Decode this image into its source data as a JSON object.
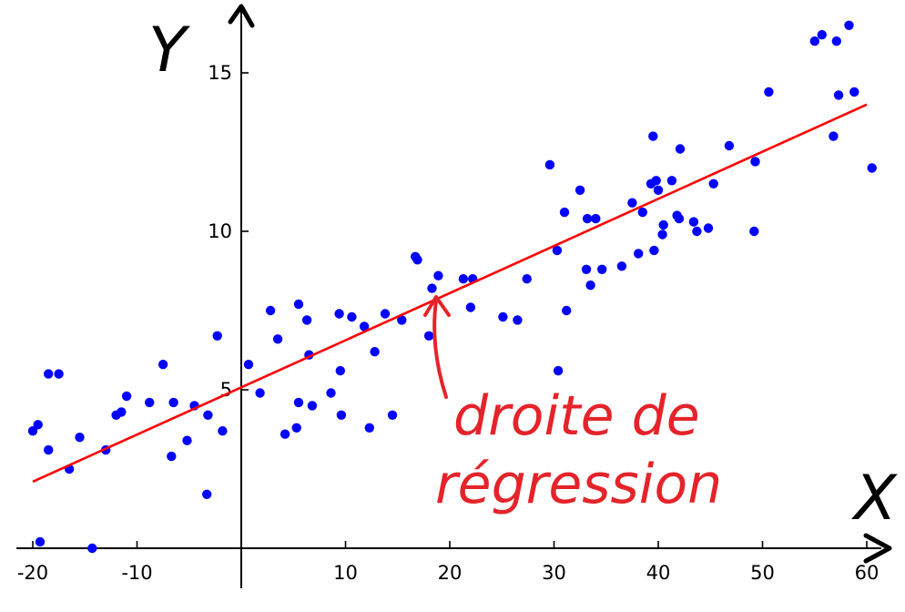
{
  "chart_data": {
    "type": "scatter",
    "title": "",
    "xlabel": "X",
    "ylabel": "Y",
    "xlim": [
      -20,
      60
    ],
    "ylim": [
      0,
      16
    ],
    "x_ticks": [
      -20,
      -10,
      10,
      20,
      30,
      40,
      50,
      60
    ],
    "x_tick_labels": [
      "-20",
      "-10",
      "10",
      "20",
      "30",
      "40",
      "50",
      "60"
    ],
    "y_ticks": [
      5,
      10,
      15
    ],
    "y_tick_labels": [
      "5",
      "10",
      "15"
    ],
    "grid": false,
    "legend": "none",
    "colors": {
      "points": "#0000ff",
      "regression_line": "#ff0000",
      "annotation": "#e4242a",
      "axes": "#000000"
    },
    "series": [
      {
        "kind": "scatter",
        "points": [
          [
            -20,
            3.7
          ],
          [
            -19.5,
            3.9
          ],
          [
            -18.5,
            5.5
          ],
          [
            -17.5,
            5.5
          ],
          [
            -16.5,
            2.5
          ],
          [
            -15.5,
            3.5
          ],
          [
            -18.5,
            3.1
          ],
          [
            -19.3,
            0.2
          ],
          [
            -14.3,
            0.0
          ],
          [
            -13,
            3.1
          ],
          [
            -12,
            4.2
          ],
          [
            -11.5,
            4.3
          ],
          [
            -11,
            4.8
          ],
          [
            -8.8,
            4.6
          ],
          [
            -7.5,
            5.8
          ],
          [
            -6.7,
            2.9
          ],
          [
            -6.5,
            4.6
          ],
          [
            -5.2,
            3.4
          ],
          [
            -4.5,
            4.5
          ],
          [
            -3.3,
            1.7
          ],
          [
            -3.2,
            4.2
          ],
          [
            -2.3,
            6.7
          ],
          [
            -1.8,
            3.7
          ],
          [
            0.7,
            5.8
          ],
          [
            1.8,
            4.9
          ],
          [
            2.8,
            7.5
          ],
          [
            3.5,
            6.6
          ],
          [
            4.2,
            3.6
          ],
          [
            5.3,
            3.8
          ],
          [
            5.5,
            7.7
          ],
          [
            5.5,
            4.6
          ],
          [
            6.3,
            7.2
          ],
          [
            6.5,
            6.1
          ],
          [
            6.8,
            4.5
          ],
          [
            8.6,
            4.9
          ],
          [
            9.4,
            7.4
          ],
          [
            9.5,
            5.6
          ],
          [
            9.6,
            4.2
          ],
          [
            10.6,
            7.3
          ],
          [
            11.8,
            7.0
          ],
          [
            12.3,
            3.8
          ],
          [
            12.8,
            6.2
          ],
          [
            13.8,
            7.4
          ],
          [
            14.5,
            4.2
          ],
          [
            15.4,
            7.2
          ],
          [
            16.7,
            9.2
          ],
          [
            16.9,
            9.1
          ],
          [
            18,
            6.7
          ],
          [
            18.3,
            8.2
          ],
          [
            18.9,
            8.6
          ],
          [
            21.3,
            8.5
          ],
          [
            22,
            7.6
          ],
          [
            22.2,
            8.5
          ],
          [
            25.1,
            7.3
          ],
          [
            26.5,
            7.2
          ],
          [
            27.4,
            8.5
          ],
          [
            29.6,
            12.1
          ],
          [
            30.3,
            9.4
          ],
          [
            30.4,
            5.6
          ],
          [
            31,
            10.6
          ],
          [
            31.2,
            7.5
          ],
          [
            32.5,
            11.3
          ],
          [
            33.1,
            8.8
          ],
          [
            33.2,
            10.4
          ],
          [
            33.5,
            8.3
          ],
          [
            34,
            10.4
          ],
          [
            34.6,
            8.8
          ],
          [
            36.5,
            8.9
          ],
          [
            37.5,
            10.9
          ],
          [
            38.1,
            9.3
          ],
          [
            38.5,
            10.6
          ],
          [
            39.3,
            11.5
          ],
          [
            39.5,
            13.0
          ],
          [
            39.6,
            9.4
          ],
          [
            39.8,
            11.6
          ],
          [
            40,
            11.3
          ],
          [
            40.4,
            9.9
          ],
          [
            40.5,
            10.2
          ],
          [
            41.3,
            11.6
          ],
          [
            41.8,
            10.5
          ],
          [
            42,
            10.4
          ],
          [
            42.1,
            12.6
          ],
          [
            43.4,
            10.3
          ],
          [
            43.7,
            10.0
          ],
          [
            44.8,
            10.1
          ],
          [
            45.3,
            11.5
          ],
          [
            46.8,
            12.7
          ],
          [
            49.2,
            10.0
          ],
          [
            49.3,
            12.2
          ],
          [
            50.6,
            14.4
          ],
          [
            55,
            16.0
          ],
          [
            55.7,
            16.2
          ],
          [
            56.8,
            13.0
          ],
          [
            57.1,
            16.0
          ],
          [
            57.3,
            14.3
          ],
          [
            58.3,
            16.5
          ],
          [
            58.8,
            14.4
          ],
          [
            60.5,
            12.0
          ]
        ]
      },
      {
        "kind": "regression-line",
        "points": [
          [
            -20,
            2.1
          ],
          [
            60,
            14.0
          ]
        ]
      }
    ],
    "annotations": [
      {
        "text_lines": [
          "droite de",
          "régression"
        ],
        "target": [
          19.5,
          7.9
        ]
      }
    ]
  }
}
